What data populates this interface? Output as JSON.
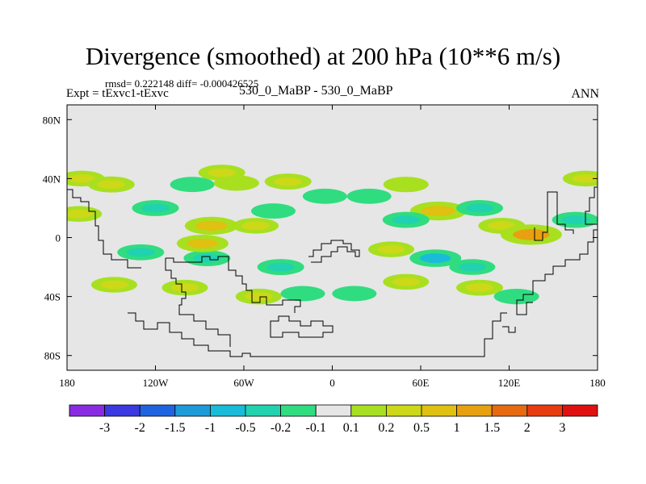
{
  "chart_data": {
    "type": "heatmap",
    "title": "Divergence (smoothed) at 200 hPa (10**6 m/s)",
    "stats_line": "rmsd= 0.222148 diff= -0.000426525",
    "experiment_label": "Expt = tExvc1-tExvc",
    "case_label": "530_0_MaBP - 530_0_MaBP",
    "season_label": "ANN",
    "xlabel": "",
    "ylabel": "",
    "xlim": [
      -180,
      180
    ],
    "ylim": [
      -90,
      90
    ],
    "x_ticks": [
      {
        "value": -180,
        "label": "180"
      },
      {
        "value": -120,
        "label": "120W"
      },
      {
        "value": -60,
        "label": "60W"
      },
      {
        "value": 0,
        "label": "0"
      },
      {
        "value": 60,
        "label": "60E"
      },
      {
        "value": 120,
        "label": "120E"
      },
      {
        "value": 180,
        "label": "180"
      }
    ],
    "y_ticks": [
      {
        "value": 80,
        "label": "80N"
      },
      {
        "value": 40,
        "label": "40N"
      },
      {
        "value": 0,
        "label": "0"
      },
      {
        "value": -40,
        "label": "40S"
      },
      {
        "value": -80,
        "label": "80S"
      }
    ],
    "colorbar": {
      "colors": [
        "#8a2be2",
        "#3a3ae0",
        "#1e64e0",
        "#1e9ad8",
        "#18bcd8",
        "#20d2b0",
        "#30dc80",
        "#e6e6e6",
        "#a8e020",
        "#ccd818",
        "#e0c010",
        "#e8a010",
        "#e86a10",
        "#e83c10",
        "#e01010"
      ],
      "labels": [
        "-3",
        "-2",
        "-1.5",
        "-1",
        "-0.5",
        "-0.2",
        "-0.1",
        "0.1",
        "0.2",
        "0.5",
        "1",
        "1.5",
        "2",
        "3"
      ]
    },
    "field_anomalies": [
      {
        "lon": -170,
        "lat": 40,
        "value": 0.25
      },
      {
        "lon": -150,
        "lat": 36,
        "value": 0.3
      },
      {
        "lon": -95,
        "lat": 36,
        "value": -0.15
      },
      {
        "lon": -65,
        "lat": 37,
        "value": 0.2
      },
      {
        "lon": -75,
        "lat": 44,
        "value": 0.3
      },
      {
        "lon": -30,
        "lat": 38,
        "value": 0.3
      },
      {
        "lon": -5,
        "lat": 28,
        "value": -0.15
      },
      {
        "lon": -172,
        "lat": 16,
        "value": 0.25
      },
      {
        "lon": -120,
        "lat": 20,
        "value": -0.3
      },
      {
        "lon": -82,
        "lat": 8,
        "value": 0.7
      },
      {
        "lon": -52,
        "lat": 8,
        "value": 0.25
      },
      {
        "lon": -40,
        "lat": 18,
        "value": -0.15
      },
      {
        "lon": -130,
        "lat": -10,
        "value": -0.3
      },
      {
        "lon": -85,
        "lat": -14,
        "value": -0.3
      },
      {
        "lon": -35,
        "lat": -20,
        "value": -0.3
      },
      {
        "lon": -88,
        "lat": -4,
        "value": 0.6
      },
      {
        "lon": -148,
        "lat": -32,
        "value": 0.25
      },
      {
        "lon": -100,
        "lat": -34,
        "value": 0.25
      },
      {
        "lon": -50,
        "lat": -40,
        "value": 0.25
      },
      {
        "lon": 25,
        "lat": 28,
        "value": -0.15
      },
      {
        "lon": 50,
        "lat": 36,
        "value": 0.2
      },
      {
        "lon": 72,
        "lat": 18,
        "value": 0.9
      },
      {
        "lon": 50,
        "lat": 12,
        "value": -0.3
      },
      {
        "lon": 100,
        "lat": 20,
        "value": -0.3
      },
      {
        "lon": 115,
        "lat": 8,
        "value": 0.3
      },
      {
        "lon": 135,
        "lat": 2,
        "value": 1.2
      },
      {
        "lon": 165,
        "lat": 12,
        "value": -0.3
      },
      {
        "lon": 172,
        "lat": 40,
        "value": 0.25
      },
      {
        "lon": 40,
        "lat": -8,
        "value": 0.25
      },
      {
        "lon": 70,
        "lat": -14,
        "value": -0.6
      },
      {
        "lon": 95,
        "lat": -20,
        "value": -0.25
      },
      {
        "lon": 50,
        "lat": -30,
        "value": 0.25
      },
      {
        "lon": 100,
        "lat": -34,
        "value": 0.3
      },
      {
        "lon": 125,
        "lat": -40,
        "value": -0.2
      },
      {
        "lon": 15,
        "lat": -38,
        "value": -0.15
      },
      {
        "lon": -20,
        "lat": -38,
        "value": -0.15
      }
    ]
  }
}
